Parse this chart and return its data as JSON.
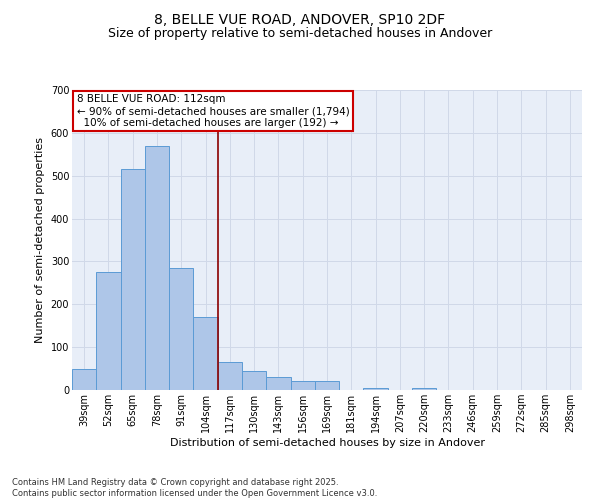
{
  "title_line1": "8, BELLE VUE ROAD, ANDOVER, SP10 2DF",
  "title_line2": "Size of property relative to semi-detached houses in Andover",
  "xlabel": "Distribution of semi-detached houses by size in Andover",
  "ylabel": "Number of semi-detached properties",
  "categories": [
    "39sqm",
    "52sqm",
    "65sqm",
    "78sqm",
    "91sqm",
    "104sqm",
    "117sqm",
    "130sqm",
    "143sqm",
    "156sqm",
    "169sqm",
    "181sqm",
    "194sqm",
    "207sqm",
    "220sqm",
    "233sqm",
    "246sqm",
    "259sqm",
    "272sqm",
    "285sqm",
    "298sqm"
  ],
  "values": [
    50,
    275,
    515,
    570,
    285,
    170,
    65,
    45,
    30,
    20,
    20,
    0,
    5,
    0,
    5,
    0,
    0,
    0,
    0,
    0,
    0
  ],
  "bar_color": "#aec6e8",
  "bar_edge_color": "#5b9bd5",
  "property_label": "8 BELLE VUE ROAD: 112sqm",
  "smaller_pct": 90,
  "smaller_count": 1794,
  "larger_pct": 10,
  "larger_count": 192,
  "vline_color": "#8b0000",
  "annotation_box_edge_color": "#cc0000",
  "ylim": [
    0,
    700
  ],
  "yticks": [
    0,
    100,
    200,
    300,
    400,
    500,
    600,
    700
  ],
  "grid_color": "#d0d8e8",
  "background_color": "#e8eef8",
  "footnote": "Contains HM Land Registry data © Crown copyright and database right 2025.\nContains public sector information licensed under the Open Government Licence v3.0.",
  "title_fontsize": 10,
  "subtitle_fontsize": 9,
  "label_fontsize": 8,
  "tick_fontsize": 7,
  "annot_fontsize": 7.5,
  "footnote_fontsize": 6
}
